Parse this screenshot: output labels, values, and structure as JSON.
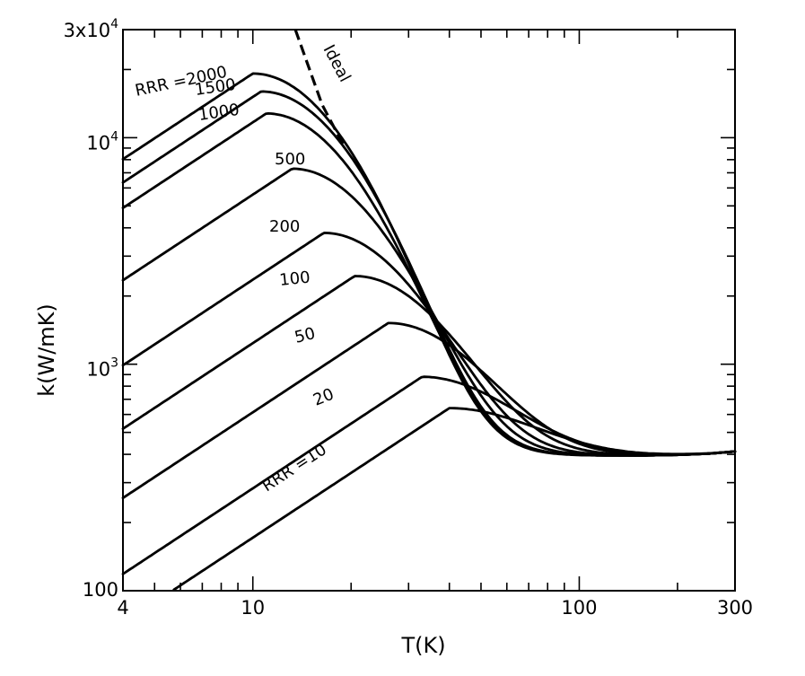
{
  "chart_data": {
    "type": "line",
    "title": "",
    "xlabel": "T(K)",
    "ylabel": "k(W/mK)",
    "xscale": "log",
    "yscale": "log",
    "xlim": [
      4,
      300
    ],
    "ylim": [
      100,
      30000
    ],
    "grid": false,
    "x_ticks": [
      {
        "value": 4,
        "label": "4"
      },
      {
        "value": 10,
        "label": "10"
      },
      {
        "value": 100,
        "label": "100"
      },
      {
        "value": 300,
        "label": "300"
      }
    ],
    "y_ticks": [
      {
        "value": 100,
        "label": "100"
      },
      {
        "value": 1000,
        "base": "10",
        "exp": "3"
      },
      {
        "value": 10000,
        "base": "10",
        "exp": "4"
      },
      {
        "value": 30000,
        "base": "3x10",
        "exp": "4"
      }
    ],
    "series": [
      {
        "name": "RRR=2000",
        "label": "RRR =2000",
        "peak_T": 10.0,
        "peak_k": 19200
      },
      {
        "name": "RRR=1500",
        "label": "1500",
        "peak_T": 10.6,
        "peak_k": 16000
      },
      {
        "name": "RRR=1000",
        "label": "1000",
        "peak_T": 11.0,
        "peak_k": 12800
      },
      {
        "name": "RRR=500",
        "label": "500",
        "peak_T": 13.2,
        "peak_k": 7300
      },
      {
        "name": "RRR=200",
        "label": "200",
        "peak_T": 16.5,
        "peak_k": 3800
      },
      {
        "name": "RRR=100",
        "label": "100",
        "peak_T": 20.5,
        "peak_k": 2450
      },
      {
        "name": "RRR=50",
        "label": "50",
        "peak_T": 26.0,
        "peak_k": 1520
      },
      {
        "name": "RRR=20",
        "label": "20",
        "peak_T": 33.0,
        "peak_k": 880
      },
      {
        "name": "RRR=10",
        "label": "RRR =10",
        "peak_T": 40.0,
        "peak_k": 640
      }
    ],
    "ideal": {
      "label": "Ideal",
      "style": "dashed",
      "points": [
        [
          13.5,
          30000
        ],
        [
          16.3,
          14000
        ],
        [
          19.0,
          9200
        ]
      ]
    },
    "common_high_T": {
      "T": [
        150,
        200,
        250,
        300
      ],
      "k": [
        395,
        398,
        403,
        412
      ]
    }
  }
}
